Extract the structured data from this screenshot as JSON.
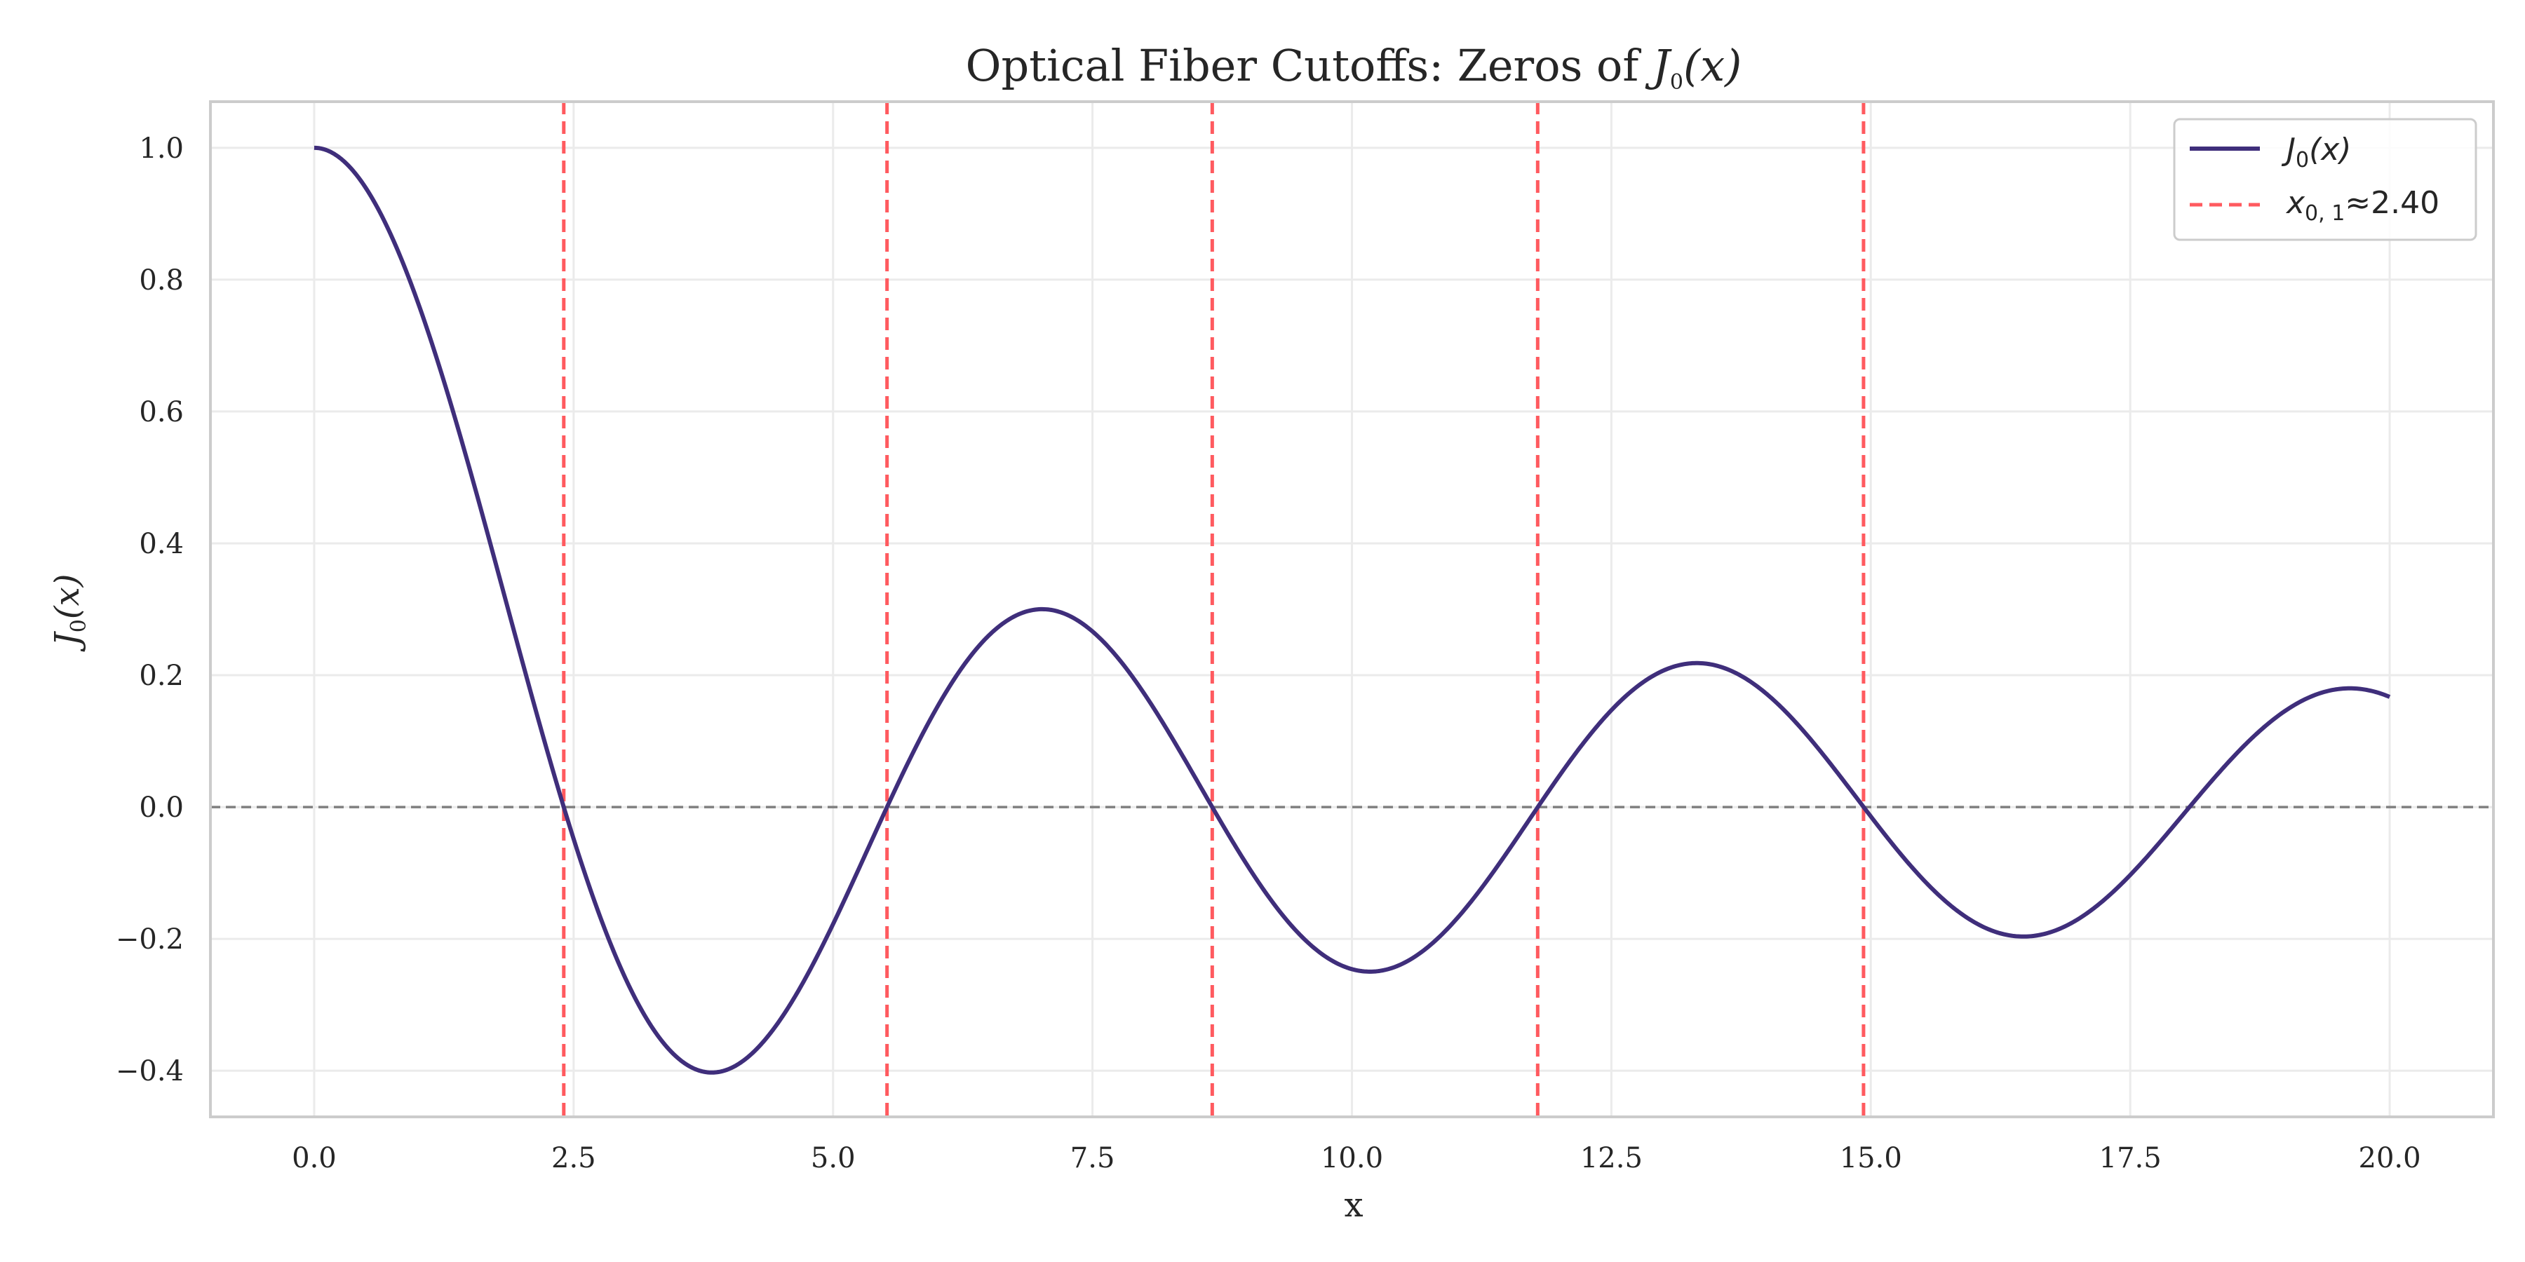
{
  "chart_data": {
    "type": "line",
    "title": {
      "prefix": "Optical Fiber Cutoffs: Zeros of ",
      "math_fn": "J",
      "math_sub": "0",
      "math_arg": "(x)"
    },
    "xlabel": "x",
    "ylabel": {
      "math_fn": "J",
      "math_sub": "0",
      "math_arg": "(x)"
    },
    "xlim": [
      -1.0,
      21.0
    ],
    "ylim": [
      -0.47,
      1.07
    ],
    "xticks": [
      0.0,
      2.5,
      5.0,
      7.5,
      10.0,
      12.5,
      15.0,
      17.5,
      20.0
    ],
    "xtick_labels": [
      "0.0",
      "2.5",
      "5.0",
      "7.5",
      "10.0",
      "12.5",
      "15.0",
      "17.5",
      "20.0"
    ],
    "yticks": [
      -0.4,
      -0.2,
      0.0,
      0.2,
      0.4,
      0.6,
      0.8,
      1.0
    ],
    "ytick_labels": [
      "−0.4",
      "−0.2",
      "0.0",
      "0.2",
      "0.4",
      "0.6",
      "0.8",
      "1.0"
    ],
    "grid": true,
    "legend_position": "top-right",
    "series": [
      {
        "name": "J0(x)",
        "legend": {
          "fn": "J",
          "sub": "0",
          "arg": "(x)"
        },
        "function": "bessel_j0",
        "x_range": [
          0.0,
          20.0
        ],
        "color": "#3f2e7b",
        "sample_points": [
          {
            "x": 0.0,
            "y": 1.0
          },
          {
            "x": 2.405,
            "y": 0.0
          },
          {
            "x": 3.83,
            "y": -0.403
          },
          {
            "x": 5.52,
            "y": 0.0
          },
          {
            "x": 7.02,
            "y": 0.3
          },
          {
            "x": 8.654,
            "y": 0.0
          },
          {
            "x": 10.17,
            "y": -0.25
          },
          {
            "x": 11.79,
            "y": 0.0
          },
          {
            "x": 13.32,
            "y": 0.218
          },
          {
            "x": 14.93,
            "y": 0.0
          },
          {
            "x": 16.47,
            "y": -0.196
          },
          {
            "x": 18.07,
            "y": 0.0
          },
          {
            "x": 19.62,
            "y": 0.18
          },
          {
            "x": 20.0,
            "y": 0.167
          }
        ]
      }
    ],
    "zero_lines": {
      "name": "x0,1≈2.40",
      "legend": {
        "var": "x",
        "sub": "0, 1",
        "rest": "≈2.40"
      },
      "values": [
        2.405,
        5.52,
        8.654,
        11.79,
        14.93
      ],
      "color": "#ff5a5f",
      "style": "dashed"
    },
    "baseline": {
      "y": 0.0,
      "color": "#808080",
      "style": "dashed"
    }
  }
}
